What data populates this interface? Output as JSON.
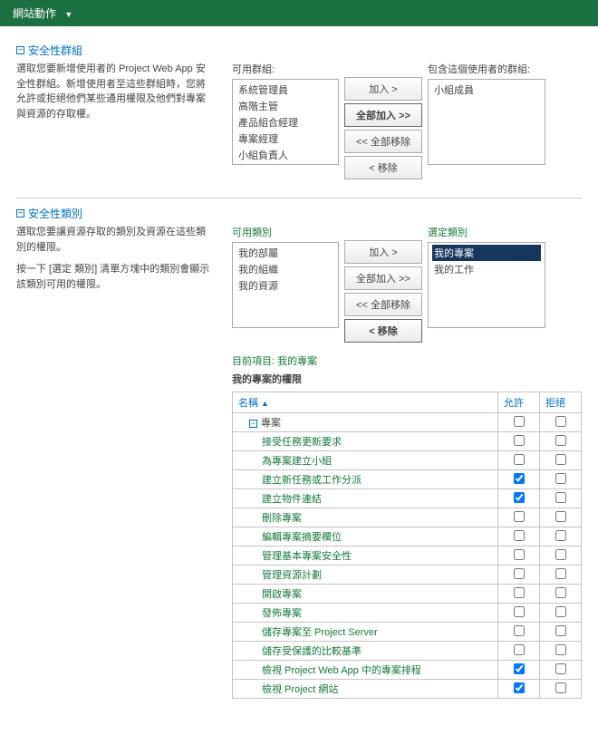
{
  "header": {
    "site_actions": "網站動作"
  },
  "sections": {
    "securityGroups": {
      "title": "安全性群組",
      "desc": "選取您要新增使用者的 Project Web App 安全性群組。新增使用者至這些群組時，您將允許或拒絕他們某些通用權限及他們對專案與資源的存取權。",
      "available_label": "可用群組:",
      "included_label": "包含這個使用者的群組:",
      "available_items": [
        "系統管理員",
        "高階主管",
        "產品組合經理",
        "專案經理",
        "小組負責人"
      ],
      "included_items": [
        "小組成員"
      ],
      "buttons": {
        "add": "加入 >",
        "add_all": "全部加入 >>",
        "remove_all": "<< 全部移除",
        "remove": "< 移除"
      }
    },
    "securityCategories": {
      "title": "安全性類別",
      "desc1": "選取您要讓資源存取的類別及資源在這些類別的權限。",
      "desc2": "按一下 [選定\n類別] 清單方塊中的類別會顯示該類別可用的權限。",
      "available_label": "可用類別",
      "selected_label": "選定類別",
      "available_items": [
        "我的部屬",
        "我的組織",
        "我的資源"
      ],
      "selected_items": [
        {
          "label": "我的專案",
          "selected": true
        },
        {
          "label": "我的工作",
          "selected": false
        }
      ],
      "buttons": {
        "add": "加入 >",
        "add_all": "全部加入 >>",
        "remove_all": "<< 全部移除",
        "remove": "< 移除"
      },
      "current_item_label": "目前項目:",
      "current_item_value": "我的專案",
      "perm_title": "我的專案的權限",
      "perm_columns": {
        "name": "名稱",
        "allow": "允許",
        "deny": "拒絕"
      },
      "perm_group": "專案",
      "perm_rows": [
        {
          "label": "接受任務更新要求",
          "allow": false,
          "deny": false
        },
        {
          "label": "為專案建立小組",
          "allow": false,
          "deny": false
        },
        {
          "label": "建立新任務或工作分派",
          "allow": true,
          "deny": false
        },
        {
          "label": "建立物件連結",
          "allow": true,
          "deny": false
        },
        {
          "label": "刪除專案",
          "allow": false,
          "deny": false
        },
        {
          "label": "編輯專案摘要欄位",
          "allow": false,
          "deny": false
        },
        {
          "label": "管理基本專案安全性",
          "allow": false,
          "deny": false
        },
        {
          "label": "管理資源計劃",
          "allow": false,
          "deny": false
        },
        {
          "label": "開啟專案",
          "allow": false,
          "deny": false
        },
        {
          "label": "發佈專案",
          "allow": false,
          "deny": false
        },
        {
          "label": "儲存專案至 Project Server",
          "allow": false,
          "deny": false
        },
        {
          "label": "儲存受保護的比較基準",
          "allow": false,
          "deny": false
        },
        {
          "label": "檢視 Project Web App 中的專案排程",
          "allow": true,
          "deny": false
        },
        {
          "label": "檢視 Project 網站",
          "allow": true,
          "deny": false
        }
      ]
    }
  }
}
